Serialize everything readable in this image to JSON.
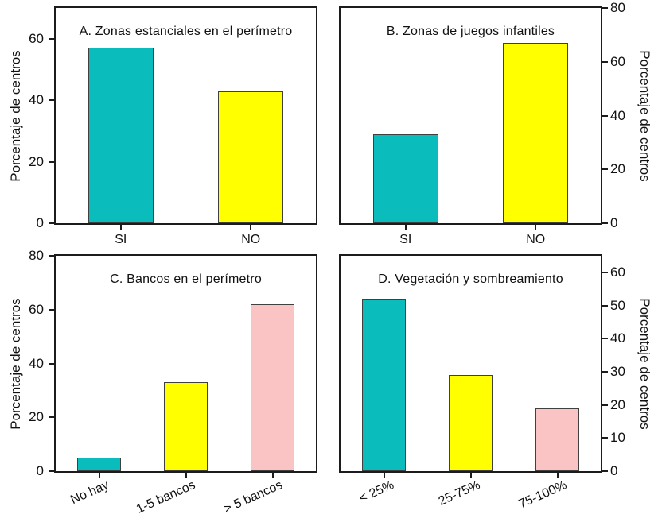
{
  "figure": {
    "background": "#ffffff",
    "axis_color": "#1c1c1c",
    "bar_border_color": "#404040",
    "bar_colors": [
      "#0bbcbc",
      "#ffff00",
      "#fbc4c4"
    ]
  },
  "chart_data": [
    {
      "type": "bar",
      "panel": "A",
      "title": "A. Zonas estanciales en el perímetro",
      "categories": [
        "SI",
        "NO"
      ],
      "values": [
        57,
        43
      ],
      "ylabel": "Porcentaje de centros",
      "y_axis_side": "left",
      "yticks": [
        0,
        20,
        40,
        60
      ],
      "ylim": [
        0,
        70
      ],
      "x_labels_rotated": false,
      "grid": false,
      "legend": false
    },
    {
      "type": "bar",
      "panel": "B",
      "title": "B. Zonas de juegos infantiles",
      "categories": [
        "SI",
        "NO"
      ],
      "values": [
        33,
        67
      ],
      "ylabel": "Porcentaje de centros",
      "y_axis_side": "right",
      "yticks": [
        0,
        20,
        40,
        60,
        80
      ],
      "ylim": [
        0,
        80
      ],
      "x_labels_rotated": false,
      "grid": false,
      "legend": false
    },
    {
      "type": "bar",
      "panel": "C",
      "title": "C. Bancos en el perímetro",
      "categories": [
        "No hay",
        "1-5 bancos",
        "> 5 bancos"
      ],
      "values": [
        5,
        33,
        62
      ],
      "ylabel": "Porcentaje de centros",
      "y_axis_side": "left",
      "yticks": [
        0,
        20,
        40,
        60,
        80
      ],
      "ylim": [
        0,
        80
      ],
      "x_labels_rotated": true,
      "grid": false,
      "legend": false
    },
    {
      "type": "bar",
      "panel": "D",
      "title": "D. Vegetación y sombreamiento",
      "categories": [
        "< 25%",
        "25-75%",
        "75-100%"
      ],
      "values": [
        52,
        29,
        19
      ],
      "ylabel": "Porcentaje de centros",
      "y_axis_side": "right",
      "yticks": [
        0,
        10,
        20,
        30,
        40,
        50,
        60
      ],
      "ylim": [
        0,
        65
      ],
      "x_labels_rotated": true,
      "grid": false,
      "legend": false
    }
  ]
}
